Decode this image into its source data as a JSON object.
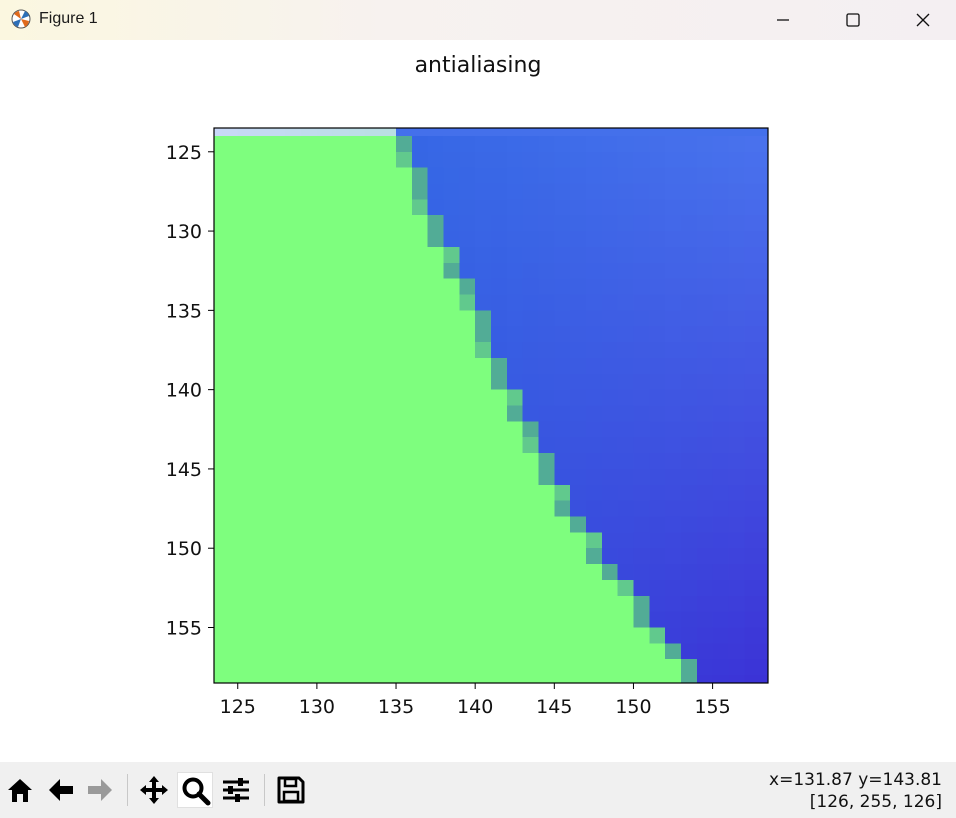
{
  "window": {
    "title": "Figure 1",
    "controls": [
      "minimize",
      "maximize",
      "close"
    ]
  },
  "figure": {
    "title": "antialiasing"
  },
  "toolbar": {
    "buttons": [
      "home-icon",
      "back-icon",
      "forward-icon",
      "pan-icon",
      "zoom-icon",
      "configure-subplots-icon",
      "save-icon"
    ],
    "active": "zoom-icon",
    "coords_line1": "x=131.87 y=143.81",
    "coords_line2": "[126, 255, 126]"
  },
  "chart_data": {
    "type": "heatmap",
    "title": "antialiasing",
    "xlabel": "",
    "ylabel": "",
    "xlim": [
      123.5,
      158.5
    ],
    "ylim": [
      158.5,
      123.5
    ],
    "x_ticks": [
      "125",
      "130",
      "135",
      "140",
      "145",
      "150",
      "155"
    ],
    "y_ticks": [
      "125",
      "130",
      "135",
      "140",
      "145",
      "150",
      "155"
    ],
    "boundary": {
      "description": "green region lower-left, blue region upper-right, separated by a diagonal edge",
      "edge_points": [
        [
          135.5,
          124
        ],
        [
          136.5,
          127
        ],
        [
          137.5,
          130
        ],
        [
          138.5,
          132
        ],
        [
          139.5,
          134
        ],
        [
          140.5,
          136
        ],
        [
          141.5,
          139
        ],
        [
          142.5,
          141
        ],
        [
          143.5,
          143
        ],
        [
          144.5,
          145
        ],
        [
          145.5,
          147
        ],
        [
          146.5,
          148
        ],
        [
          147.5,
          150
        ],
        [
          148.5,
          151
        ],
        [
          149.5,
          152
        ],
        [
          150.5,
          154
        ],
        [
          151.5,
          155
        ],
        [
          152.5,
          156
        ],
        [
          153.5,
          158
        ]
      ]
    },
    "colors": {
      "green": "#7efe7e",
      "blue_top_right": "#4a74ee",
      "blue_bottom_left": "#2a60e0",
      "blue_bottom_right": "#3c32d6",
      "top_strip": "#c8d8f8",
      "edge": "#4a9e9a"
    }
  }
}
